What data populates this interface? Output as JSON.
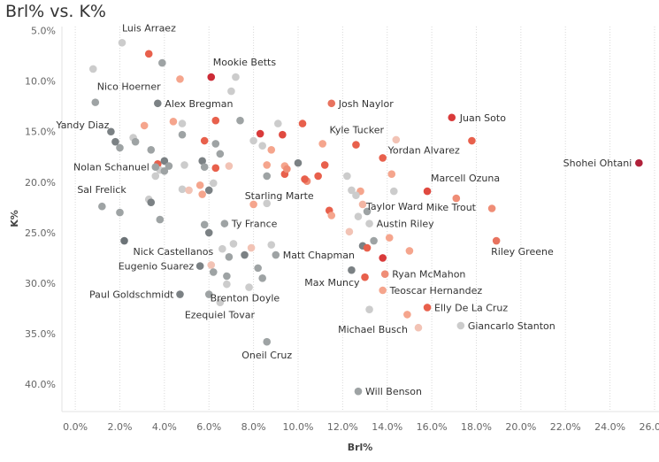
{
  "chart_data": {
    "type": "scatter",
    "title": "Brl% vs. K%",
    "xlabel": "Brl%",
    "ylabel": "K%",
    "xlim": [
      -0.6,
      26.2
    ],
    "ylim": [
      4.6,
      42.7
    ],
    "y_inverted": true,
    "grid": "vertical-dotted",
    "x_ticks": [
      "0.0%",
      "2.0%",
      "4.0%",
      "6.0%",
      "8.0%",
      "10.0%",
      "12.0%",
      "14.0%",
      "16.0%",
      "18.0%",
      "20.0%",
      "22.0%",
      "24.0%",
      "26.0%"
    ],
    "y_ticks": [
      "5.0%",
      "10.0%",
      "15.0%",
      "20.0%",
      "25.0%",
      "30.0%",
      "35.0%",
      "40.0%"
    ],
    "labeled_points": [
      {
        "name": "Luis Arraez",
        "x": 2.1,
        "y": 6.2,
        "color": "#cccccc"
      },
      {
        "name": "Mookie Betts",
        "x": 6.1,
        "y": 9.6,
        "color": "#cc2b36"
      },
      {
        "name": "Nico Hoerner",
        "x": 0.9,
        "y": 12.1,
        "color": "#9ea3a4"
      },
      {
        "name": "Alex Bregman",
        "x": 3.7,
        "y": 12.2,
        "color": "#7b8184"
      },
      {
        "name": "Josh Naylor",
        "x": 11.5,
        "y": 12.2,
        "color": "#e8735f"
      },
      {
        "name": "Juan Soto",
        "x": 16.9,
        "y": 13.6,
        "color": "#d93a3a"
      },
      {
        "name": "Yandy Diaz",
        "x": 1.8,
        "y": 16.0,
        "color": "#7b8184"
      },
      {
        "name": "Kyle Tucker",
        "x": 12.6,
        "y": 16.3,
        "color": "#e8604c"
      },
      {
        "name": "Yordan Alvarez",
        "x": 13.8,
        "y": 17.6,
        "color": "#e8604c"
      },
      {
        "name": "Shohei Ohtani",
        "x": 25.3,
        "y": 18.1,
        "color": "#b0213a"
      },
      {
        "name": "Nolan Schanuel",
        "x": 3.6,
        "y": 18.5,
        "color": "#9ea3a4"
      },
      {
        "name": "Marcell Ozuna",
        "x": 15.8,
        "y": 20.9,
        "color": "#e04a40"
      },
      {
        "name": "Sal Frelick",
        "x": 1.2,
        "y": 22.4,
        "color": "#9ea3a4"
      },
      {
        "name": "Starling Marte",
        "x": 8.6,
        "y": 22.1,
        "color": "#cccccc"
      },
      {
        "name": "Taylor Ward",
        "x": 12.9,
        "y": 22.2,
        "color": "#f2b5a3"
      },
      {
        "name": "Mike Trout",
        "x": 17.1,
        "y": 21.6,
        "color": "#ef8d76"
      },
      {
        "name": "Ty France",
        "x": 6.7,
        "y": 24.1,
        "color": "#9ea3a4"
      },
      {
        "name": "Austin Riley",
        "x": 13.2,
        "y": 24.1,
        "color": "#cccccc"
      },
      {
        "name": "Nick Castellanos",
        "x": 2.2,
        "y": 25.8,
        "color": "#6c7377"
      },
      {
        "name": "Riley Greene",
        "x": 18.9,
        "y": 25.8,
        "color": "#e8735f"
      },
      {
        "name": "Matt Chapman",
        "x": 9.0,
        "y": 27.2,
        "color": "#9ea3a4"
      },
      {
        "name": "Eugenio Suarez",
        "x": 5.6,
        "y": 28.3,
        "color": "#7b8184"
      },
      {
        "name": "Ryan McMahon",
        "x": 13.9,
        "y": 29.1,
        "color": "#ef8d76"
      },
      {
        "name": "Max Muncy",
        "x": 13.0,
        "y": 29.4,
        "color": "#e8604c"
      },
      {
        "name": "Teoscar Hernandez",
        "x": 13.8,
        "y": 30.7,
        "color": "#f5a58d"
      },
      {
        "name": "Paul Goldschmidt",
        "x": 4.7,
        "y": 31.1,
        "color": "#7b8184"
      },
      {
        "name": "Brenton Doyle",
        "x": 7.8,
        "y": 30.4,
        "color": "#cccccc"
      },
      {
        "name": "Ezequiel Tovar",
        "x": 6.5,
        "y": 31.9,
        "color": "#cccccc"
      },
      {
        "name": "Elly De La Cruz",
        "x": 15.8,
        "y": 32.4,
        "color": "#e8604c"
      },
      {
        "name": "Michael Busch",
        "x": 15.4,
        "y": 34.4,
        "color": "#f2c3b5"
      },
      {
        "name": "Giancarlo Stanton",
        "x": 17.3,
        "y": 34.2,
        "color": "#cccccc"
      },
      {
        "name": "Oneil Cruz",
        "x": 8.6,
        "y": 35.8,
        "color": "#9ea3a4"
      },
      {
        "name": "Will Benson",
        "x": 12.7,
        "y": 40.7,
        "color": "#9ea3a4"
      }
    ],
    "unlabeled_points": [
      {
        "x": 3.3,
        "y": 7.3,
        "color": "#e8604c"
      },
      {
        "x": 3.9,
        "y": 8.2,
        "color": "#9ea3a4"
      },
      {
        "x": 0.8,
        "y": 8.8,
        "color": "#cccccc"
      },
      {
        "x": 4.7,
        "y": 9.8,
        "color": "#f5a58d"
      },
      {
        "x": 7.2,
        "y": 9.6,
        "color": "#cccccc"
      },
      {
        "x": 7.0,
        "y": 11.0,
        "color": "#cccccc"
      },
      {
        "x": 4.4,
        "y": 14.0,
        "color": "#f5a58d"
      },
      {
        "x": 4.8,
        "y": 14.2,
        "color": "#cccccc"
      },
      {
        "x": 6.3,
        "y": 13.9,
        "color": "#e8604c"
      },
      {
        "x": 7.4,
        "y": 13.9,
        "color": "#9ea3a4"
      },
      {
        "x": 9.1,
        "y": 14.2,
        "color": "#cccccc"
      },
      {
        "x": 10.2,
        "y": 14.2,
        "color": "#e8604c"
      },
      {
        "x": 1.6,
        "y": 15.0,
        "color": "#7b8184"
      },
      {
        "x": 3.1,
        "y": 14.4,
        "color": "#f5a58d"
      },
      {
        "x": 2.6,
        "y": 15.6,
        "color": "#cccccc"
      },
      {
        "x": 2.7,
        "y": 16.0,
        "color": "#9ea3a4"
      },
      {
        "x": 2.0,
        "y": 16.6,
        "color": "#9ea3a4"
      },
      {
        "x": 3.4,
        "y": 16.8,
        "color": "#9ea3a4"
      },
      {
        "x": 4.8,
        "y": 15.3,
        "color": "#9ea3a4"
      },
      {
        "x": 5.8,
        "y": 15.9,
        "color": "#e8604c"
      },
      {
        "x": 6.3,
        "y": 16.2,
        "color": "#9ea3a4"
      },
      {
        "x": 6.5,
        "y": 17.2,
        "color": "#9ea3a4"
      },
      {
        "x": 8.3,
        "y": 15.2,
        "color": "#d93a3a"
      },
      {
        "x": 9.3,
        "y": 15.3,
        "color": "#e04a40"
      },
      {
        "x": 8.0,
        "y": 15.9,
        "color": "#cccccc"
      },
      {
        "x": 8.4,
        "y": 16.4,
        "color": "#cccccc"
      },
      {
        "x": 8.8,
        "y": 16.8,
        "color": "#f5a58d"
      },
      {
        "x": 11.1,
        "y": 16.2,
        "color": "#f5a58d"
      },
      {
        "x": 14.4,
        "y": 15.8,
        "color": "#f2c3b5"
      },
      {
        "x": 17.8,
        "y": 15.9,
        "color": "#e8604c"
      },
      {
        "x": 3.7,
        "y": 18.2,
        "color": "#e8604c"
      },
      {
        "x": 4.0,
        "y": 17.9,
        "color": "#7b8184"
      },
      {
        "x": 3.8,
        "y": 18.8,
        "color": "#cccccc"
      },
      {
        "x": 4.2,
        "y": 18.4,
        "color": "#9ea3a4"
      },
      {
        "x": 4.0,
        "y": 18.9,
        "color": "#9ea3a4"
      },
      {
        "x": 3.6,
        "y": 19.4,
        "color": "#cccccc"
      },
      {
        "x": 4.9,
        "y": 18.3,
        "color": "#cccccc"
      },
      {
        "x": 5.7,
        "y": 17.9,
        "color": "#7b8184"
      },
      {
        "x": 5.8,
        "y": 18.5,
        "color": "#9ea3a4"
      },
      {
        "x": 6.3,
        "y": 18.6,
        "color": "#e8604c"
      },
      {
        "x": 6.9,
        "y": 18.4,
        "color": "#f2c3b5"
      },
      {
        "x": 8.6,
        "y": 18.3,
        "color": "#f5a58d"
      },
      {
        "x": 9.4,
        "y": 18.4,
        "color": "#f5a58d"
      },
      {
        "x": 9.4,
        "y": 19.2,
        "color": "#e8604c"
      },
      {
        "x": 9.5,
        "y": 18.7,
        "color": "#ef8d76"
      },
      {
        "x": 8.6,
        "y": 19.4,
        "color": "#9ea3a4"
      },
      {
        "x": 10.0,
        "y": 18.1,
        "color": "#7b8184"
      },
      {
        "x": 10.4,
        "y": 19.9,
        "color": "#ef8d76"
      },
      {
        "x": 10.9,
        "y": 19.4,
        "color": "#e8604c"
      },
      {
        "x": 11.2,
        "y": 18.3,
        "color": "#e8604c"
      },
      {
        "x": 12.2,
        "y": 19.4,
        "color": "#cccccc"
      },
      {
        "x": 14.2,
        "y": 19.2,
        "color": "#f5a58d"
      },
      {
        "x": 10.3,
        "y": 19.7,
        "color": "#e8604c"
      },
      {
        "x": 6.2,
        "y": 20.1,
        "color": "#cccccc"
      },
      {
        "x": 5.6,
        "y": 20.3,
        "color": "#f5a58d"
      },
      {
        "x": 6.0,
        "y": 20.8,
        "color": "#7b8184"
      },
      {
        "x": 4.8,
        "y": 20.7,
        "color": "#cccccc"
      },
      {
        "x": 5.1,
        "y": 20.8,
        "color": "#f2c3b5"
      },
      {
        "x": 5.7,
        "y": 21.2,
        "color": "#f5a58d"
      },
      {
        "x": 3.3,
        "y": 21.7,
        "color": "#cccccc"
      },
      {
        "x": 3.4,
        "y": 22.0,
        "color": "#7b8184"
      },
      {
        "x": 8.0,
        "y": 22.2,
        "color": "#f5a58d"
      },
      {
        "x": 12.4,
        "y": 20.8,
        "color": "#cccccc"
      },
      {
        "x": 12.8,
        "y": 20.9,
        "color": "#f5a58d"
      },
      {
        "x": 12.6,
        "y": 21.3,
        "color": "#cccccc"
      },
      {
        "x": 14.3,
        "y": 20.9,
        "color": "#cccccc"
      },
      {
        "x": 11.4,
        "y": 22.8,
        "color": "#e8604c"
      },
      {
        "x": 11.5,
        "y": 23.3,
        "color": "#f5a58d"
      },
      {
        "x": 12.7,
        "y": 23.4,
        "color": "#cccccc"
      },
      {
        "x": 13.1,
        "y": 22.9,
        "color": "#9ea3a4"
      },
      {
        "x": 18.7,
        "y": 22.6,
        "color": "#ef8d76"
      },
      {
        "x": 2.0,
        "y": 23.0,
        "color": "#9ea3a4"
      },
      {
        "x": 3.8,
        "y": 23.7,
        "color": "#9ea3a4"
      },
      {
        "x": 5.8,
        "y": 24.2,
        "color": "#9ea3a4"
      },
      {
        "x": 6.0,
        "y": 25.0,
        "color": "#7b8184"
      },
      {
        "x": 12.3,
        "y": 24.9,
        "color": "#f2c3b5"
      },
      {
        "x": 14.1,
        "y": 25.5,
        "color": "#f5a58d"
      },
      {
        "x": 13.4,
        "y": 25.8,
        "color": "#9ea3a4"
      },
      {
        "x": 12.9,
        "y": 26.3,
        "color": "#7b8184"
      },
      {
        "x": 13.1,
        "y": 26.5,
        "color": "#e8604c"
      },
      {
        "x": 15.0,
        "y": 26.8,
        "color": "#f5a58d"
      },
      {
        "x": 7.1,
        "y": 26.1,
        "color": "#cccccc"
      },
      {
        "x": 6.6,
        "y": 26.6,
        "color": "#cccccc"
      },
      {
        "x": 7.9,
        "y": 26.5,
        "color": "#f2c3b5"
      },
      {
        "x": 8.8,
        "y": 26.2,
        "color": "#cccccc"
      },
      {
        "x": 7.6,
        "y": 27.2,
        "color": "#7b8184"
      },
      {
        "x": 6.9,
        "y": 27.4,
        "color": "#9ea3a4"
      },
      {
        "x": 13.8,
        "y": 27.5,
        "color": "#d93a3a"
      },
      {
        "x": 6.1,
        "y": 28.2,
        "color": "#f2c3b5"
      },
      {
        "x": 6.2,
        "y": 28.9,
        "color": "#9ea3a4"
      },
      {
        "x": 8.2,
        "y": 28.5,
        "color": "#9ea3a4"
      },
      {
        "x": 6.8,
        "y": 29.3,
        "color": "#9ea3a4"
      },
      {
        "x": 8.4,
        "y": 29.5,
        "color": "#9ea3a4"
      },
      {
        "x": 6.8,
        "y": 30.1,
        "color": "#cccccc"
      },
      {
        "x": 6.0,
        "y": 31.1,
        "color": "#9ea3a4"
      },
      {
        "x": 12.4,
        "y": 28.7,
        "color": "#7b8184"
      },
      {
        "x": 13.2,
        "y": 32.6,
        "color": "#cccccc"
      },
      {
        "x": 14.9,
        "y": 33.1,
        "color": "#f5a58d"
      }
    ]
  }
}
